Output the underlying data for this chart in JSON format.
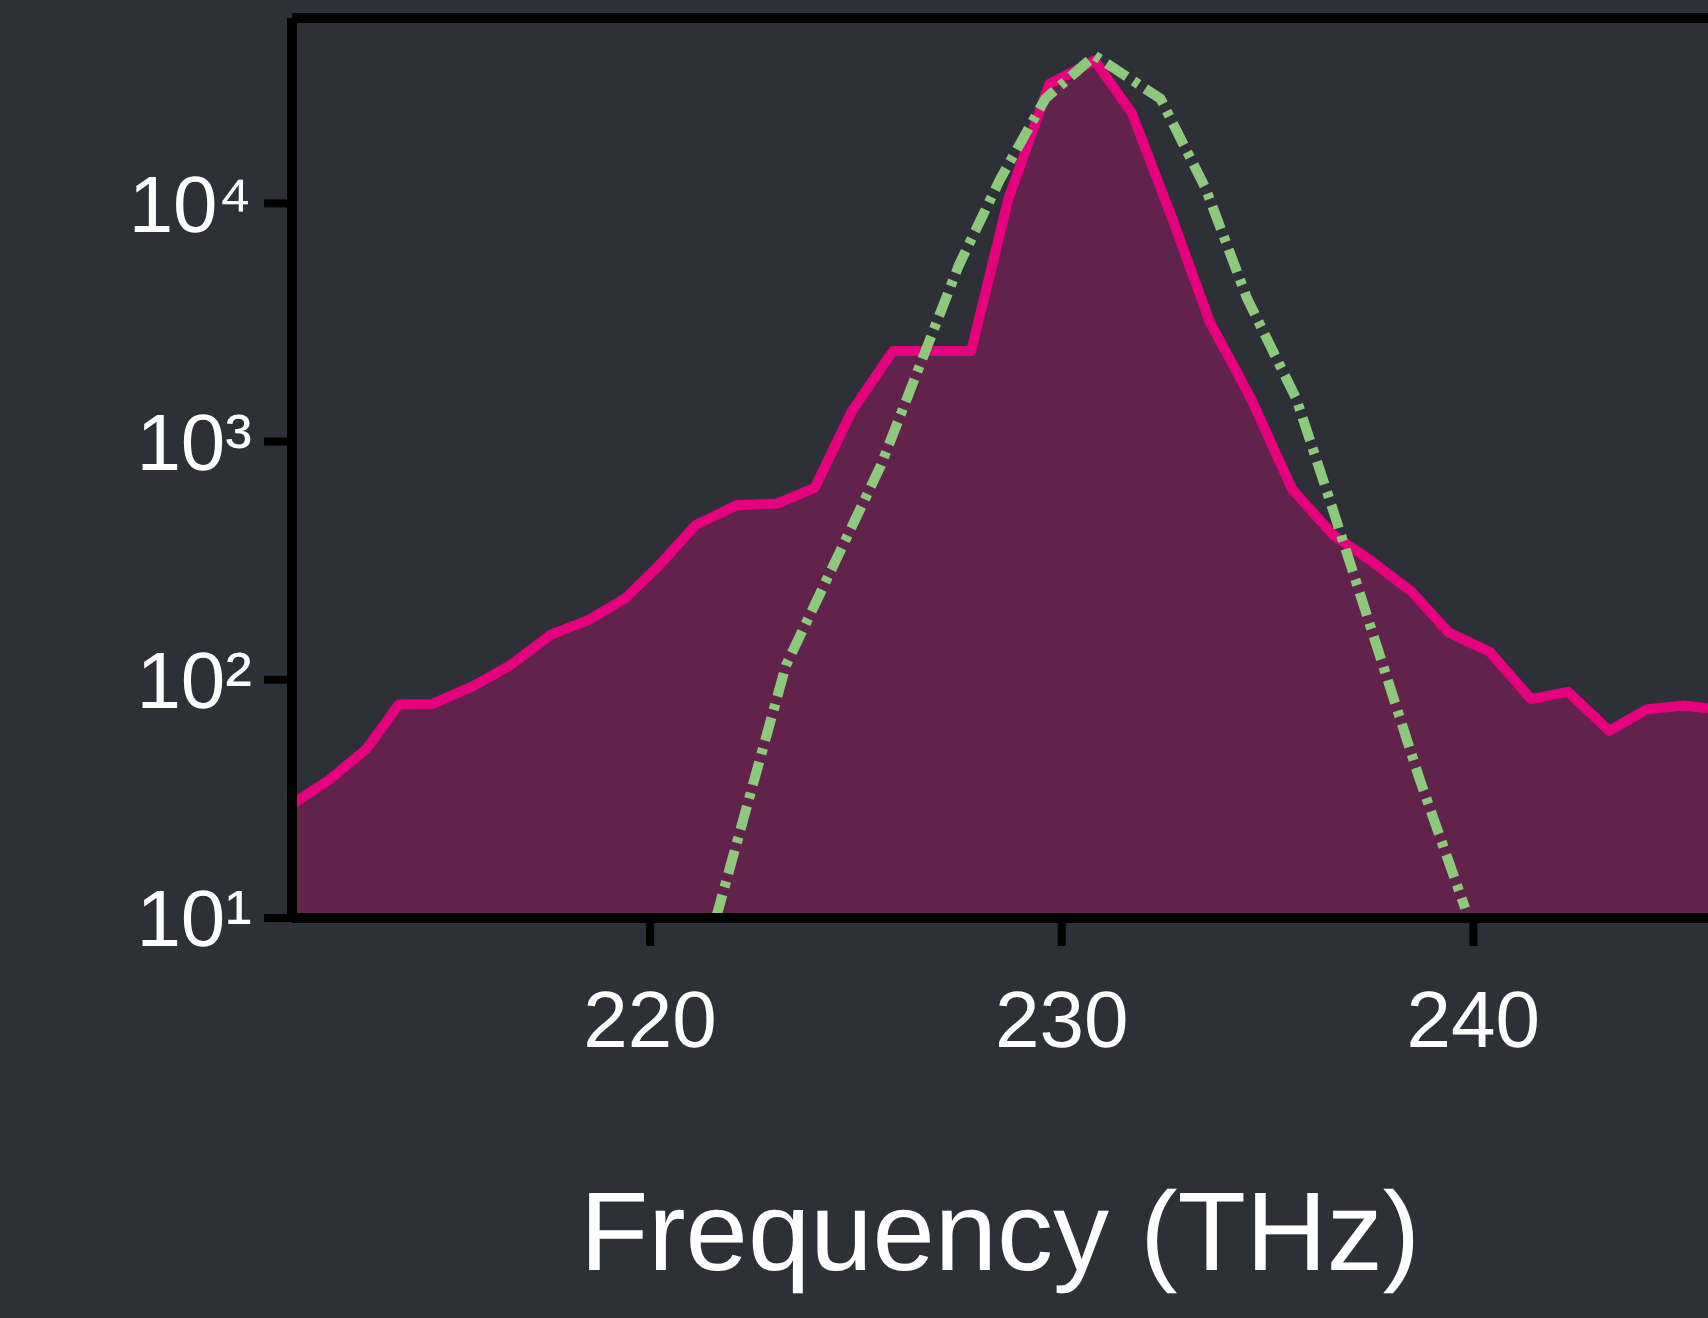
{
  "chart_data": {
    "type": "line",
    "xlabel": "Frequency (THz)",
    "log": "y",
    "xlim": [
      211.3,
      245.7
    ],
    "xticks": [
      220,
      230,
      240
    ],
    "ylim": [
      10,
      60000
    ],
    "yticks": [
      {
        "value": 10,
        "label": "10¹"
      },
      {
        "value": 100,
        "label": "10²"
      },
      {
        "value": 1000,
        "label": "10³"
      },
      {
        "value": 10000,
        "label": "10⁴"
      }
    ],
    "grid": false,
    "legend": false,
    "series": [
      {
        "type": "area",
        "color": "#e6007e",
        "line_style": "solid",
        "x": [
          211.3,
          212.2,
          213.1,
          213.9,
          214.7,
          215.7,
          216.6,
          217.6,
          218.5,
          219.4,
          220.2,
          221.1,
          222.1,
          223.1,
          224.0,
          224.9,
          225.9,
          226.9,
          227.8,
          228.7,
          229.7,
          230.8,
          231.7,
          232.7,
          233.6,
          234.6,
          235.6,
          236.6,
          237.5,
          238.5,
          239.4,
          240.4,
          241.4,
          242.3,
          243.3,
          244.2,
          245.1,
          245.7
        ],
        "values": [
          30,
          38,
          51,
          79,
          79,
          94,
          115,
          155,
          178,
          220,
          300,
          445,
          540,
          550,
          640,
          1340,
          2400,
          2400,
          2400,
          10400,
          31700,
          39800,
          24000,
          8500,
          3170,
          1510,
          630,
          405,
          317,
          234,
          158,
          131,
          83,
          89,
          61,
          75,
          78,
          76
        ]
      },
      {
        "type": "line",
        "color": "#8cc97a",
        "line_style": "dashed",
        "x": [
          221.6,
          223.3,
          225.6,
          227.5,
          228.5,
          229.6,
          230.8,
          232.4,
          233.5,
          234.5,
          235.7,
          236.6,
          237.6,
          238.7,
          239.8
        ],
        "values": [
          10,
          115,
          790,
          5500,
          12600,
          27500,
          41700,
          27500,
          11500,
          4000,
          1510,
          510,
          148,
          38,
          11
        ]
      }
    ]
  }
}
